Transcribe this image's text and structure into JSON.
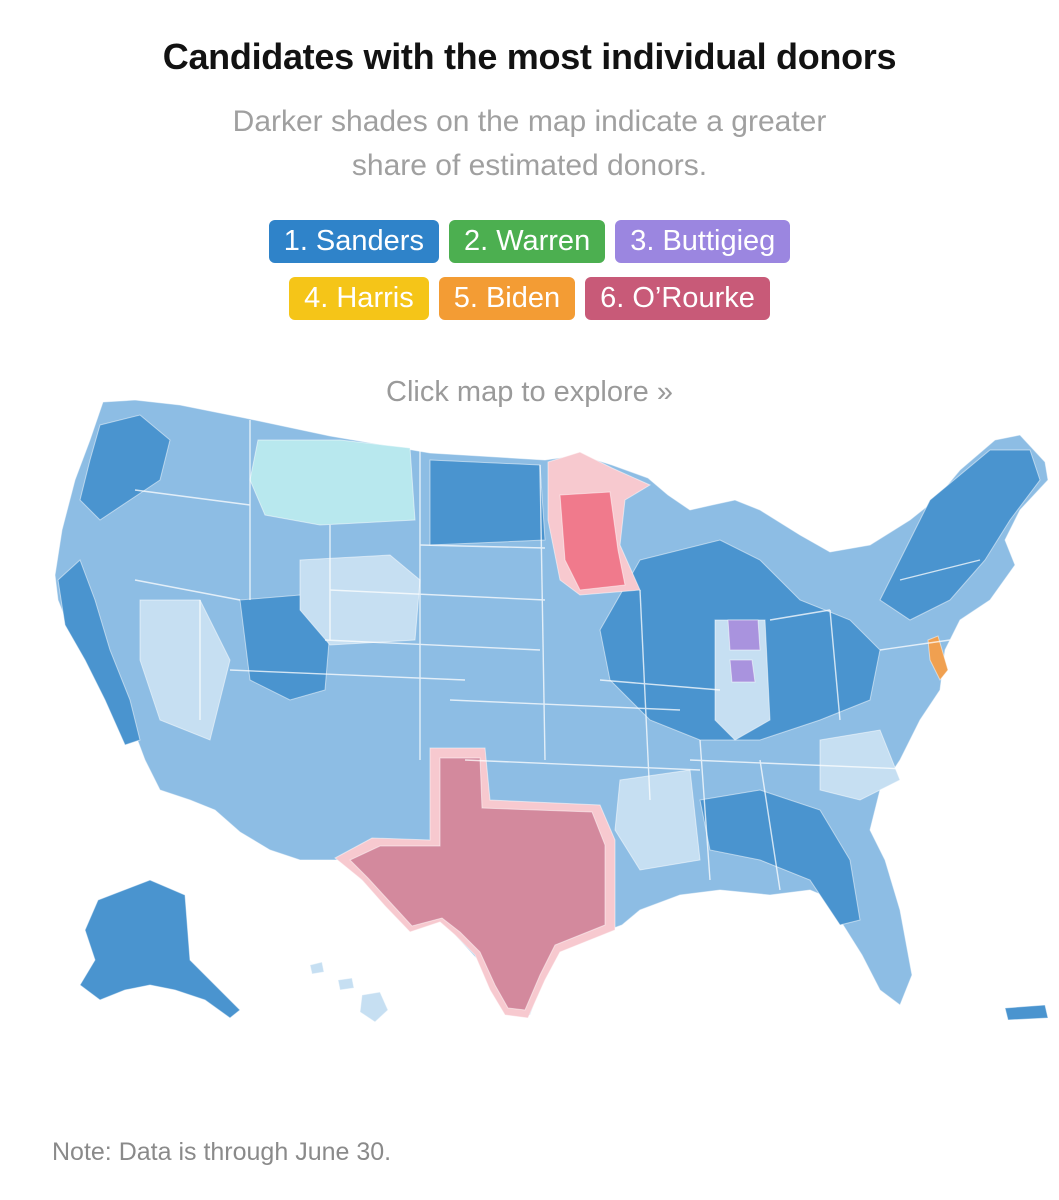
{
  "header": {
    "title": "Candidates with the most individual donors",
    "subtitle_line1": "Darker shades on the map indicate a greater",
    "subtitle_line2": "share of estimated donors."
  },
  "legend": {
    "row1": [
      {
        "label": "1. Sanders",
        "color": "#2f83c9"
      },
      {
        "label": "2. Warren",
        "color": "#4caf50"
      },
      {
        "label": "3. Buttigieg",
        "color": "#9b86e0"
      }
    ],
    "row2": [
      {
        "label": "4. Harris",
        "color": "#f5c518"
      },
      {
        "label": "5. Biden",
        "color": "#f39c34"
      },
      {
        "label": "6. O’Rourke",
        "color": "#c85a78"
      }
    ]
  },
  "map": {
    "cta": "Click map to explore »",
    "colors": {
      "sanders_dark": "#4a94cf",
      "sanders_mid": "#8dbde4",
      "sanders_light": "#c6dff2",
      "warren_light": "#b8e8ee",
      "buttigieg": "#a993de",
      "harris": "#f7c9cf",
      "biden": "#f0a050",
      "orourke": "#d3899d",
      "minnesota_red": "#f07a8c",
      "border": "#ffffff"
    }
  },
  "footer": {
    "note": "Note: Data is through June 30."
  }
}
